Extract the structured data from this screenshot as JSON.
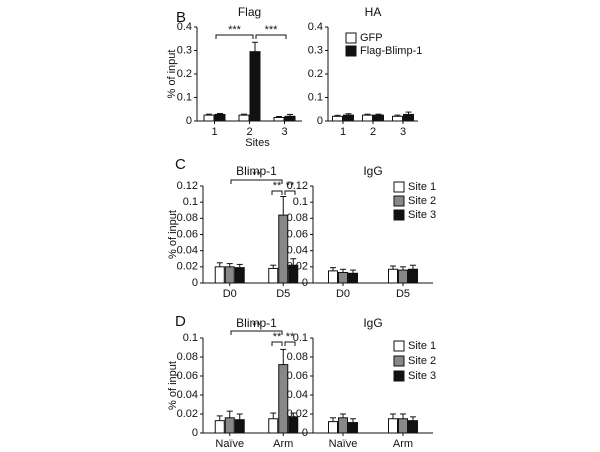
{
  "chart_data": [
    {
      "type": "bar",
      "panel": "B",
      "title": "Flag",
      "y_label": "% of input",
      "x_label": "Sites",
      "categories": [
        "1",
        "2",
        "3"
      ],
      "series": [
        {
          "color": "#ffffff",
          "values": [
            0.025,
            0.025,
            0.015
          ],
          "errors": [
            0.004,
            0.004,
            0.004
          ]
        },
        {
          "color": "#111111",
          "values": [
            0.028,
            0.295,
            0.02
          ],
          "errors": [
            0.004,
            0.04,
            0.008
          ]
        }
      ],
      "ylim": [
        0,
        0.4
      ],
      "yticks": [
        0,
        0.1,
        0.2,
        0.3,
        0.4
      ],
      "annotations": [
        "***",
        "***"
      ]
    },
    {
      "type": "bar",
      "title": "HA",
      "categories": [
        "1",
        "2",
        "3"
      ],
      "series": [
        {
          "name": "GFP",
          "color": "#ffffff",
          "values": [
            0.02,
            0.025,
            0.02
          ],
          "errors": [
            0.004,
            0.004,
            0.005
          ]
        },
        {
          "name": "Flag-Blimp-1",
          "color": "#111111",
          "values": [
            0.025,
            0.025,
            0.028
          ],
          "errors": [
            0.006,
            0.004,
            0.01
          ]
        }
      ],
      "ylim": [
        0,
        0.4
      ],
      "yticks": [
        0,
        0.1,
        0.2,
        0.3,
        0.4
      ],
      "legend": true
    },
    {
      "type": "bar",
      "panel": "C",
      "title": "Blimp-1",
      "y_label": "% of input",
      "categories": [
        "D0",
        "D5"
      ],
      "series": [
        {
          "color": "#ffffff",
          "values": [
            0.02,
            0.018
          ],
          "errors": [
            0.005,
            0.004
          ]
        },
        {
          "color": "#888888",
          "values": [
            0.02,
            0.084
          ],
          "errors": [
            0.004,
            0.023
          ]
        },
        {
          "color": "#111111",
          "values": [
            0.019,
            0.022
          ],
          "errors": [
            0.004,
            0.008
          ]
        }
      ],
      "ylim": [
        0,
        0.12
      ],
      "yticks": [
        0,
        0.02,
        0.04,
        0.06,
        0.08,
        0.1,
        0.12
      ],
      "annotations": [
        "**",
        "**",
        "**"
      ]
    },
    {
      "type": "bar",
      "title": "IgG",
      "categories": [
        "D0",
        "D5"
      ],
      "series": [
        {
          "name": "Site 1",
          "color": "#ffffff",
          "values": [
            0.015,
            0.017
          ],
          "errors": [
            0.004,
            0.004
          ]
        },
        {
          "name": "Site 2",
          "color": "#888888",
          "values": [
            0.013,
            0.016
          ],
          "errors": [
            0.004,
            0.004
          ]
        },
        {
          "name": "Site 3",
          "color": "#111111",
          "values": [
            0.012,
            0.017
          ],
          "errors": [
            0.004,
            0.005
          ]
        }
      ],
      "ylim": [
        0,
        0.12
      ],
      "yticks": [
        0,
        0.02,
        0.04,
        0.06,
        0.08,
        0.1,
        0.12
      ],
      "legend": true
    },
    {
      "type": "bar",
      "panel": "D",
      "title": "Blimp-1",
      "y_label": "% of input",
      "categories": [
        "Naïve",
        "Arm"
      ],
      "series": [
        {
          "color": "#ffffff",
          "values": [
            0.013,
            0.015
          ],
          "errors": [
            0.005,
            0.006
          ]
        },
        {
          "color": "#888888",
          "values": [
            0.016,
            0.072
          ],
          "errors": [
            0.007,
            0.016
          ]
        },
        {
          "color": "#111111",
          "values": [
            0.014,
            0.017
          ],
          "errors": [
            0.006,
            0.004
          ]
        }
      ],
      "ylim": [
        0,
        0.1
      ],
      "yticks": [
        0,
        0.02,
        0.04,
        0.06,
        0.08,
        0.1
      ],
      "annotations": [
        "**",
        "**",
        "**"
      ]
    },
    {
      "type": "bar",
      "title": "IgG",
      "categories": [
        "Naïve",
        "Arm"
      ],
      "series": [
        {
          "name": "Site 1",
          "color": "#ffffff",
          "values": [
            0.012,
            0.015
          ],
          "errors": [
            0.004,
            0.005
          ]
        },
        {
          "name": "Site 2",
          "color": "#888888",
          "values": [
            0.016,
            0.015
          ],
          "errors": [
            0.004,
            0.005
          ]
        },
        {
          "name": "Site 3",
          "color": "#111111",
          "values": [
            0.011,
            0.013
          ],
          "errors": [
            0.004,
            0.004
          ]
        }
      ],
      "ylim": [
        0,
        0.1
      ],
      "yticks": [
        0,
        0.02,
        0.04,
        0.06,
        0.08,
        0.1
      ],
      "legend": true
    }
  ]
}
